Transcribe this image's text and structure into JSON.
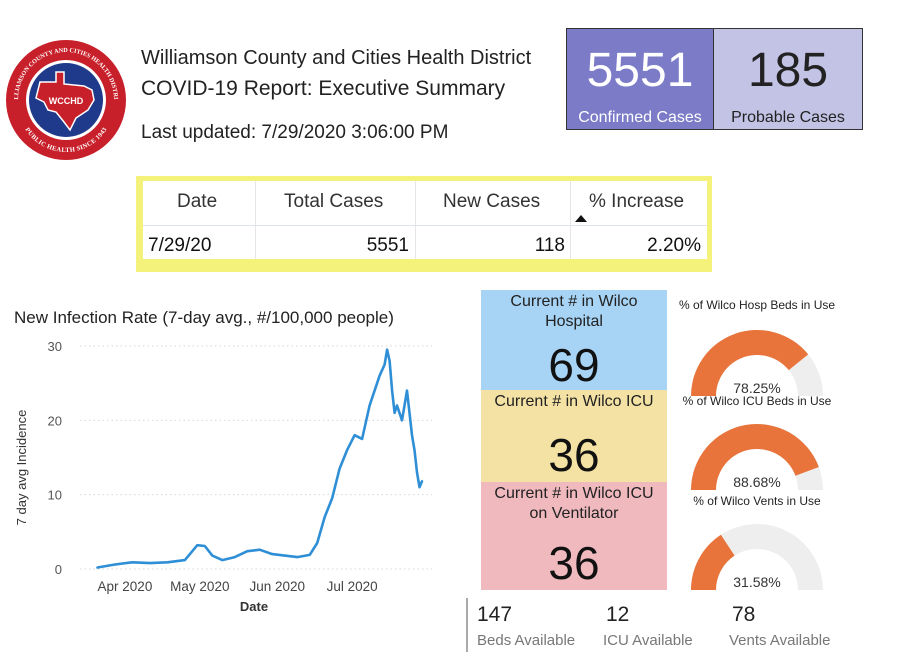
{
  "header": {
    "logo_text": "WCCHD",
    "logo_ring_top": "WILLIAMSON COUNTY AND CITIES HEALTH DISTRICT",
    "logo_ring_bottom": "PUBLIC HEALTH SINCE 1943",
    "organization": "Williamson County and Cities Health District",
    "report_title": "COVID-19 Report: Executive Summary",
    "last_updated": "Last updated:  7/29/2020 3:06:00 PM"
  },
  "kpis": {
    "confirmed": {
      "value": "5551",
      "label": "Confirmed Cases"
    },
    "probable": {
      "value": "185",
      "label": "Probable Cases"
    }
  },
  "table": {
    "headers": [
      "Date",
      "Total Cases",
      "New Cases",
      "% Increase"
    ],
    "row": [
      "7/29/20",
      "5551",
      "118",
      "2.20%"
    ]
  },
  "chart": {
    "title": "New Infection Rate (7-day avg., #/100,000 people)"
  },
  "chart_data": {
    "type": "line",
    "title": "New Infection Rate (7-day avg., #/100,000 people)",
    "xlabel": "Date",
    "ylabel": "7 day avg Incidence",
    "ylim": [
      0,
      30
    ],
    "yticks": [
      0,
      10,
      20,
      30
    ],
    "xticks": [
      "Apr 2020",
      "May 2020",
      "Jun 2020",
      "Jul 2020"
    ],
    "grid": true,
    "color": "#2f8fd6",
    "series": [
      {
        "x": [
          "2020-03-21",
          "2020-03-28",
          "2020-04-04",
          "2020-04-11",
          "2020-04-18",
          "2020-04-25",
          "2020-04-30",
          "2020-05-03",
          "2020-05-06",
          "2020-05-10",
          "2020-05-15",
          "2020-05-20",
          "2020-05-25",
          "2020-05-30",
          "2020-06-04",
          "2020-06-09",
          "2020-06-14",
          "2020-06-17",
          "2020-06-20",
          "2020-06-23",
          "2020-06-26",
          "2020-06-29",
          "2020-07-02",
          "2020-07-05",
          "2020-07-08",
          "2020-07-10",
          "2020-07-12",
          "2020-07-14",
          "2020-07-15",
          "2020-07-16",
          "2020-07-17",
          "2020-07-18",
          "2020-07-19",
          "2020-07-20",
          "2020-07-21",
          "2020-07-22",
          "2020-07-23",
          "2020-07-24",
          "2020-07-25",
          "2020-07-26",
          "2020-07-27",
          "2020-07-28",
          "2020-07-29"
        ],
        "y": [
          0.2,
          0.6,
          0.9,
          0.8,
          0.9,
          1.2,
          3.2,
          3.1,
          1.8,
          1.2,
          1.6,
          2.4,
          2.6,
          2.0,
          1.8,
          1.6,
          1.9,
          3.5,
          7.0,
          9.5,
          13.5,
          16.0,
          18.0,
          17.5,
          22.0,
          24.0,
          26.0,
          27.5,
          29.5,
          28.0,
          24.0,
          21.0,
          22.0,
          21.0,
          20.0,
          22.0,
          24.0,
          21.0,
          18.0,
          16.0,
          13.0,
          11.0,
          11.8
        ]
      }
    ]
  },
  "tiles": {
    "hospital": {
      "label": "Current # in Wilco\nHospital",
      "value": "69"
    },
    "icu": {
      "label": "Current # in Wilco ICU",
      "value": "36"
    },
    "vent": {
      "label": "Current # in Wilco ICU\non Ventilator",
      "value": "36"
    }
  },
  "gauges": [
    {
      "label": "% of Wilco Hosp Beds in Use",
      "value_text": "78.25%",
      "value": 78.25
    },
    {
      "label": "% of Wilco ICU Beds in Use",
      "value_text": "88.68%",
      "value": 88.68
    },
    {
      "label": "% of Wilco Vents in Use",
      "value_text": "31.58%",
      "value": 31.58
    }
  ],
  "availability": {
    "beds": {
      "value": "147",
      "label": "Beds Available"
    },
    "icu": {
      "value": "12",
      "label": "ICU Available"
    },
    "vents": {
      "value": "78",
      "label": "Vents Available"
    }
  },
  "colors": {
    "confirmed_bg": "#7b7bc8",
    "probable_bg": "#c3c3e6",
    "table_highlight": "#f4f27a",
    "hospital_tile": "#a7d3f5",
    "icu_tile": "#f4e2a4",
    "vent_tile": "#efb9be",
    "gauge_fill": "#e8743b",
    "gauge_track": "#eeeeee"
  }
}
